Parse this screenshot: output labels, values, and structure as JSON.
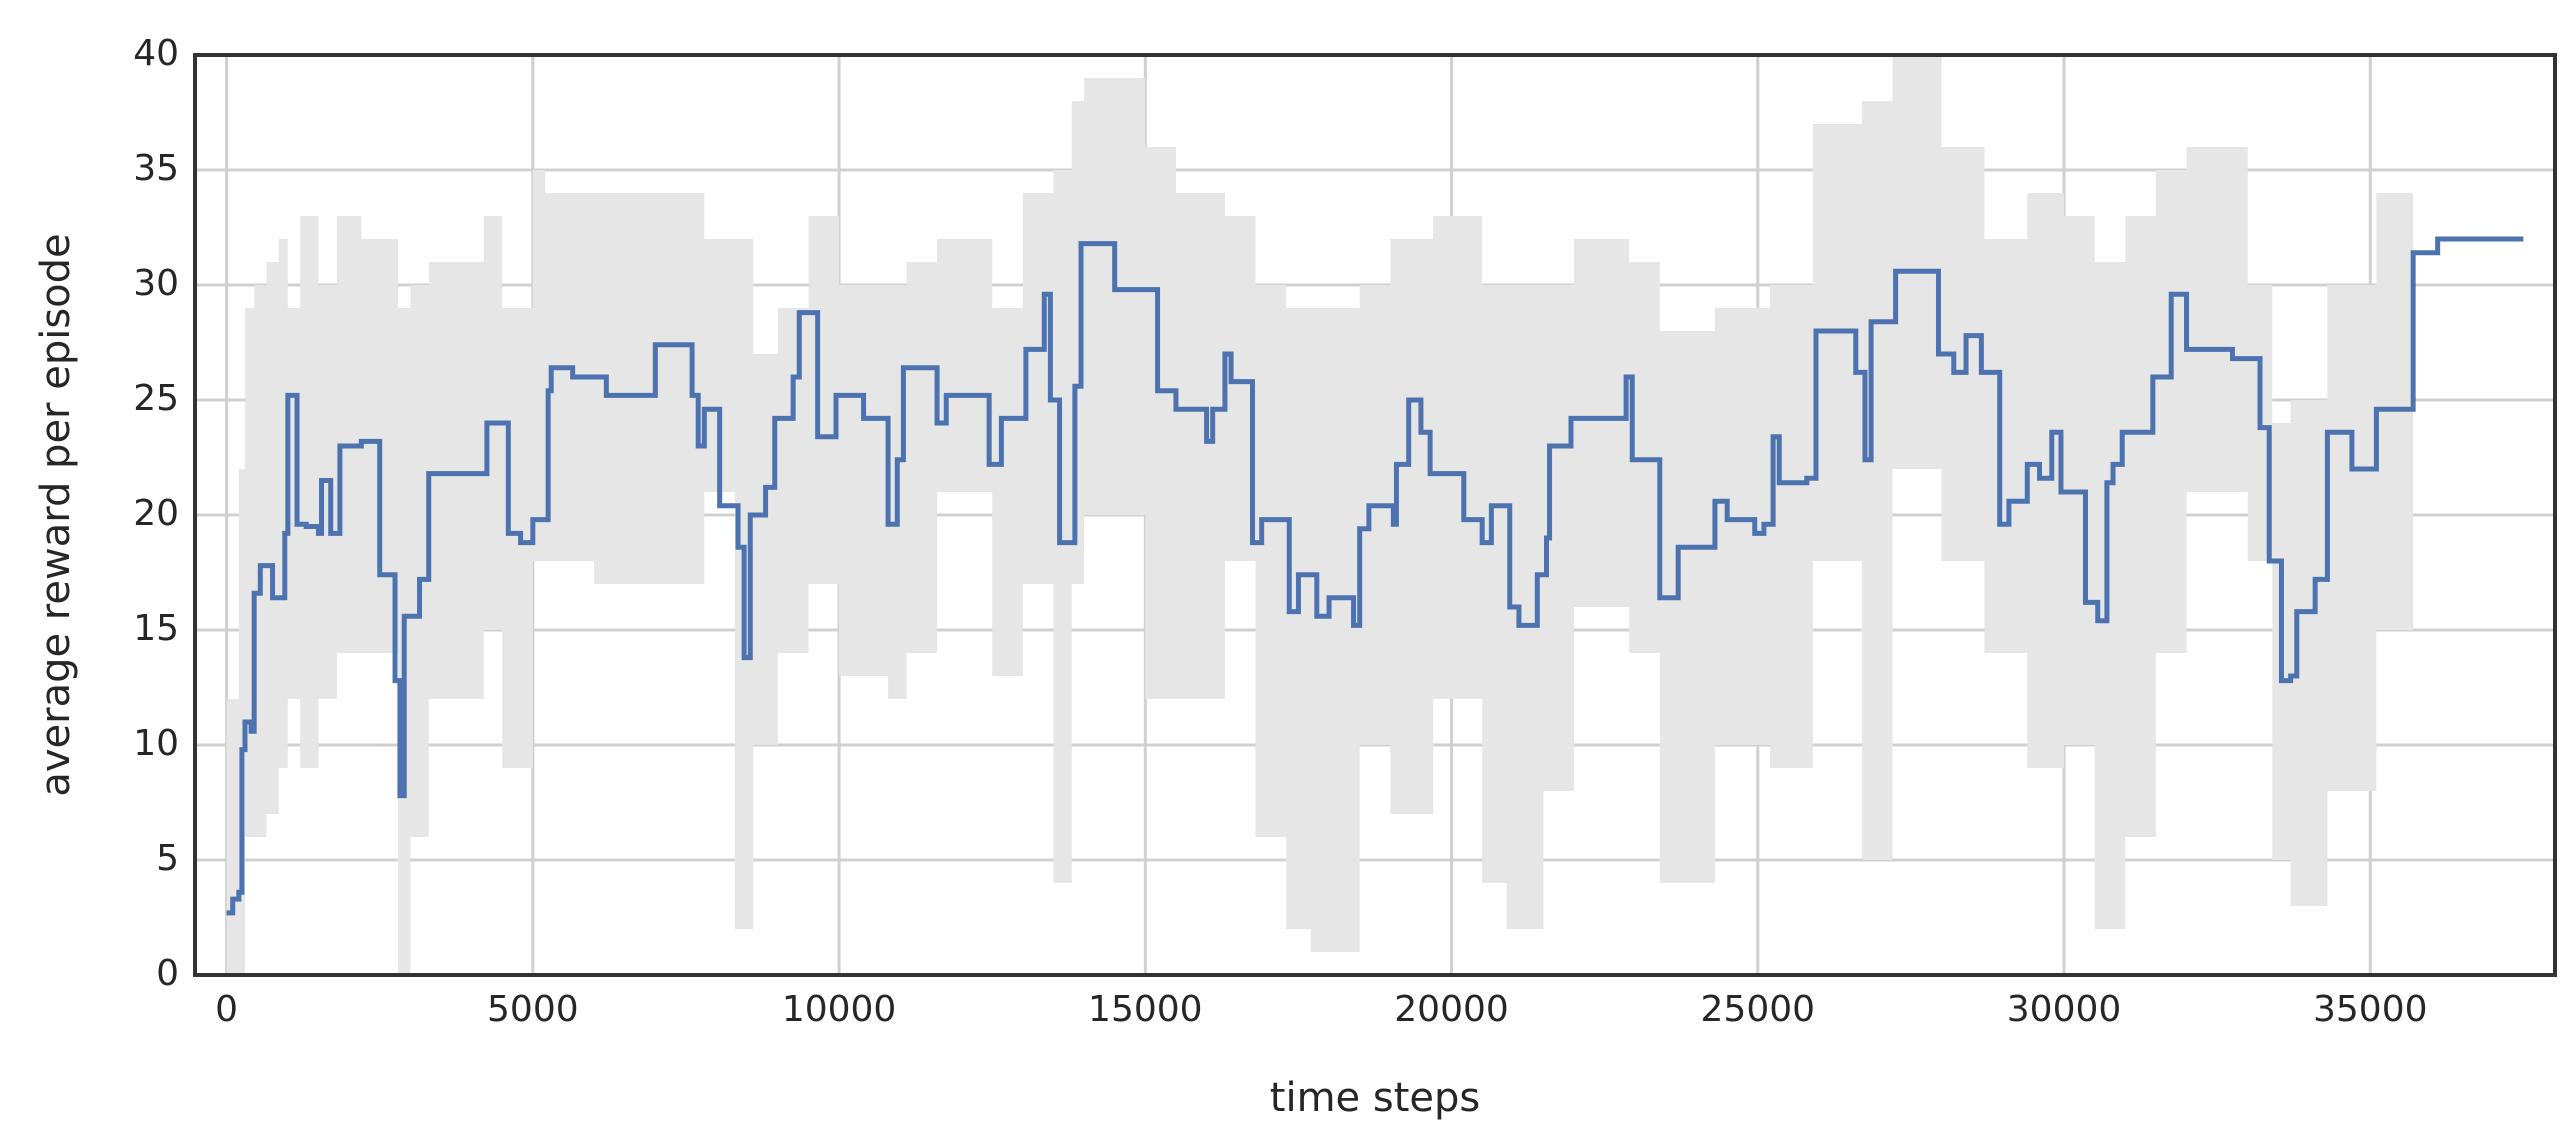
{
  "chart_data": {
    "type": "line",
    "step": true,
    "xlabel": "time steps",
    "ylabel": "average reward per episode",
    "xlim": [
      -516,
      38016
    ],
    "xticks": [
      0,
      5000,
      10000,
      15000,
      20000,
      25000,
      30000,
      35000
    ],
    "ylim": [
      0,
      40
    ],
    "yticks": [
      0,
      5,
      10,
      15,
      20,
      25,
      30,
      35,
      40
    ],
    "grid": true,
    "x": [
      0,
      100,
      200,
      250,
      300,
      400,
      450,
      550,
      750,
      950,
      1000,
      1150,
      1300,
      1500,
      1550,
      1700,
      1850,
      2200,
      2500,
      2750,
      2830,
      2900,
      3050,
      3150,
      3300,
      4200,
      4250,
      4600,
      4800,
      5000,
      5250,
      5300,
      5650,
      6200,
      7000,
      7600,
      7700,
      7800,
      8050,
      8350,
      8450,
      8550,
      8800,
      8950,
      9250,
      9350,
      9650,
      9950,
      10400,
      10800,
      10950,
      11050,
      11600,
      11750,
      12450,
      12650,
      13050,
      13350,
      13450,
      13600,
      13850,
      13950,
      14500,
      15200,
      15500,
      16000,
      16100,
      16300,
      16400,
      16750,
      16900,
      17350,
      17500,
      17800,
      18000,
      18400,
      18500,
      18650,
      19050,
      19100,
      19300,
      19500,
      19650,
      20200,
      20500,
      20650,
      20950,
      21100,
      21400,
      21550,
      21600,
      21950,
      22700,
      22850,
      22950,
      23400,
      23700,
      24300,
      24500,
      24950,
      25100,
      25250,
      25350,
      25800,
      25950,
      26600,
      26750,
      26850,
      27250,
      27950,
      28200,
      28400,
      28650,
      28950,
      29100,
      29400,
      29600,
      29800,
      29950,
      30350,
      30550,
      30700,
      30800,
      30950,
      31450,
      31750,
      32000,
      32750,
      33200,
      33350,
      33550,
      33700,
      33800,
      34100,
      34300,
      34700,
      35100,
      35700,
      36100,
      37500
    ],
    "series": [
      {
        "color": "#4c72b0",
        "values": [
          2.7,
          3.3,
          3.6,
          9.8,
          11,
          10.6,
          16.6,
          17.8,
          16.4,
          19.2,
          25.2,
          19.6,
          19.5,
          19.2,
          21.5,
          19.2,
          23,
          23.2,
          17.4,
          12.8,
          7.8,
          15.6,
          15.6,
          17.2,
          21.8,
          21.8,
          24,
          19.2,
          18.8,
          19.8,
          25.4,
          26.4,
          26,
          25.2,
          27.4,
          25.2,
          23,
          24.6,
          20.4,
          18.6,
          13.8,
          20,
          21.2,
          24.2,
          26,
          28.8,
          23.4,
          25.2,
          24.2,
          19.6,
          22.4,
          26.4,
          24,
          25.2,
          22.2,
          24.2,
          27.2,
          29.6,
          25,
          18.8,
          25.6,
          31.8,
          29.8,
          25.4,
          24.6,
          23.2,
          24.6,
          27,
          25.8,
          18.8,
          19.8,
          15.8,
          17.4,
          15.6,
          16.4,
          15.2,
          19.4,
          20.4,
          19.6,
          22.2,
          25,
          23.6,
          21.8,
          19.8,
          18.8,
          20.4,
          16,
          15.2,
          17.4,
          19,
          23,
          24.2,
          24.2,
          26,
          22.4,
          16.4,
          18.6,
          20.6,
          19.8,
          19.2,
          19.6,
          23.4,
          21.4,
          21.6,
          28,
          26.2,
          22.4,
          28.4,
          30.6,
          27,
          26.2,
          27.8,
          26.2,
          19.6,
          20.6,
          22.2,
          21.6,
          23.6,
          21,
          16.2,
          15.4,
          21.4,
          22.2,
          23.6,
          26,
          29.6,
          27.2,
          26.8,
          23.8,
          18,
          12.8,
          13,
          15.8,
          17.2,
          23.6,
          22,
          24.6,
          31.4,
          32,
          32
        ]
      }
    ],
    "band": {
      "color": "#e6e6e6",
      "x": [
        0,
        200,
        300,
        450,
        650,
        850,
        1000,
        1200,
        1500,
        1800,
        2200,
        2800,
        3000,
        3300,
        4200,
        4500,
        5000,
        5200,
        6000,
        7000,
        7800,
        8300,
        8600,
        9000,
        9500,
        10000,
        10800,
        11100,
        11600,
        12500,
        13000,
        13500,
        13800,
        14000,
        15000,
        15500,
        16300,
        16800,
        17300,
        17700,
        18500,
        19000,
        19700,
        20500,
        20900,
        21500,
        22000,
        22900,
        23400,
        24300,
        25200,
        25900,
        26700,
        27200,
        28000,
        28700,
        29400,
        30000,
        30500,
        31000,
        31500,
        32000,
        33000,
        33400,
        33700,
        34300,
        35100,
        35700
      ],
      "lower": [
        0,
        0,
        6,
        6,
        7,
        9,
        12,
        9,
        12,
        14,
        14,
        0,
        6,
        12,
        15,
        9,
        18,
        18,
        17,
        17,
        21,
        2,
        10,
        14,
        17,
        13,
        12,
        14,
        21,
        13,
        17,
        4,
        17,
        20,
        12,
        12,
        18,
        6,
        2,
        1,
        10,
        7,
        12,
        4,
        2,
        8,
        16,
        14,
        4,
        10,
        9,
        18,
        5,
        22,
        18,
        14,
        9,
        10,
        2,
        6,
        14,
        21,
        18,
        5,
        3,
        8,
        15,
        15
      ],
      "upper": [
        12,
        22,
        29,
        30,
        31,
        32,
        29,
        33,
        30,
        33,
        32,
        29,
        30,
        31,
        33,
        29,
        35,
        34,
        34,
        34,
        32,
        32,
        27,
        29,
        33,
        30,
        30,
        31,
        32,
        29,
        34,
        35,
        38,
        39,
        36,
        34,
        33,
        30,
        29,
        29,
        30,
        32,
        33,
        30,
        30,
        30,
        32,
        31,
        28,
        29,
        30,
        37,
        38,
        40,
        36,
        32,
        34,
        33,
        31,
        33,
        35,
        36,
        30,
        24,
        25,
        30,
        34,
        34
      ]
    }
  }
}
